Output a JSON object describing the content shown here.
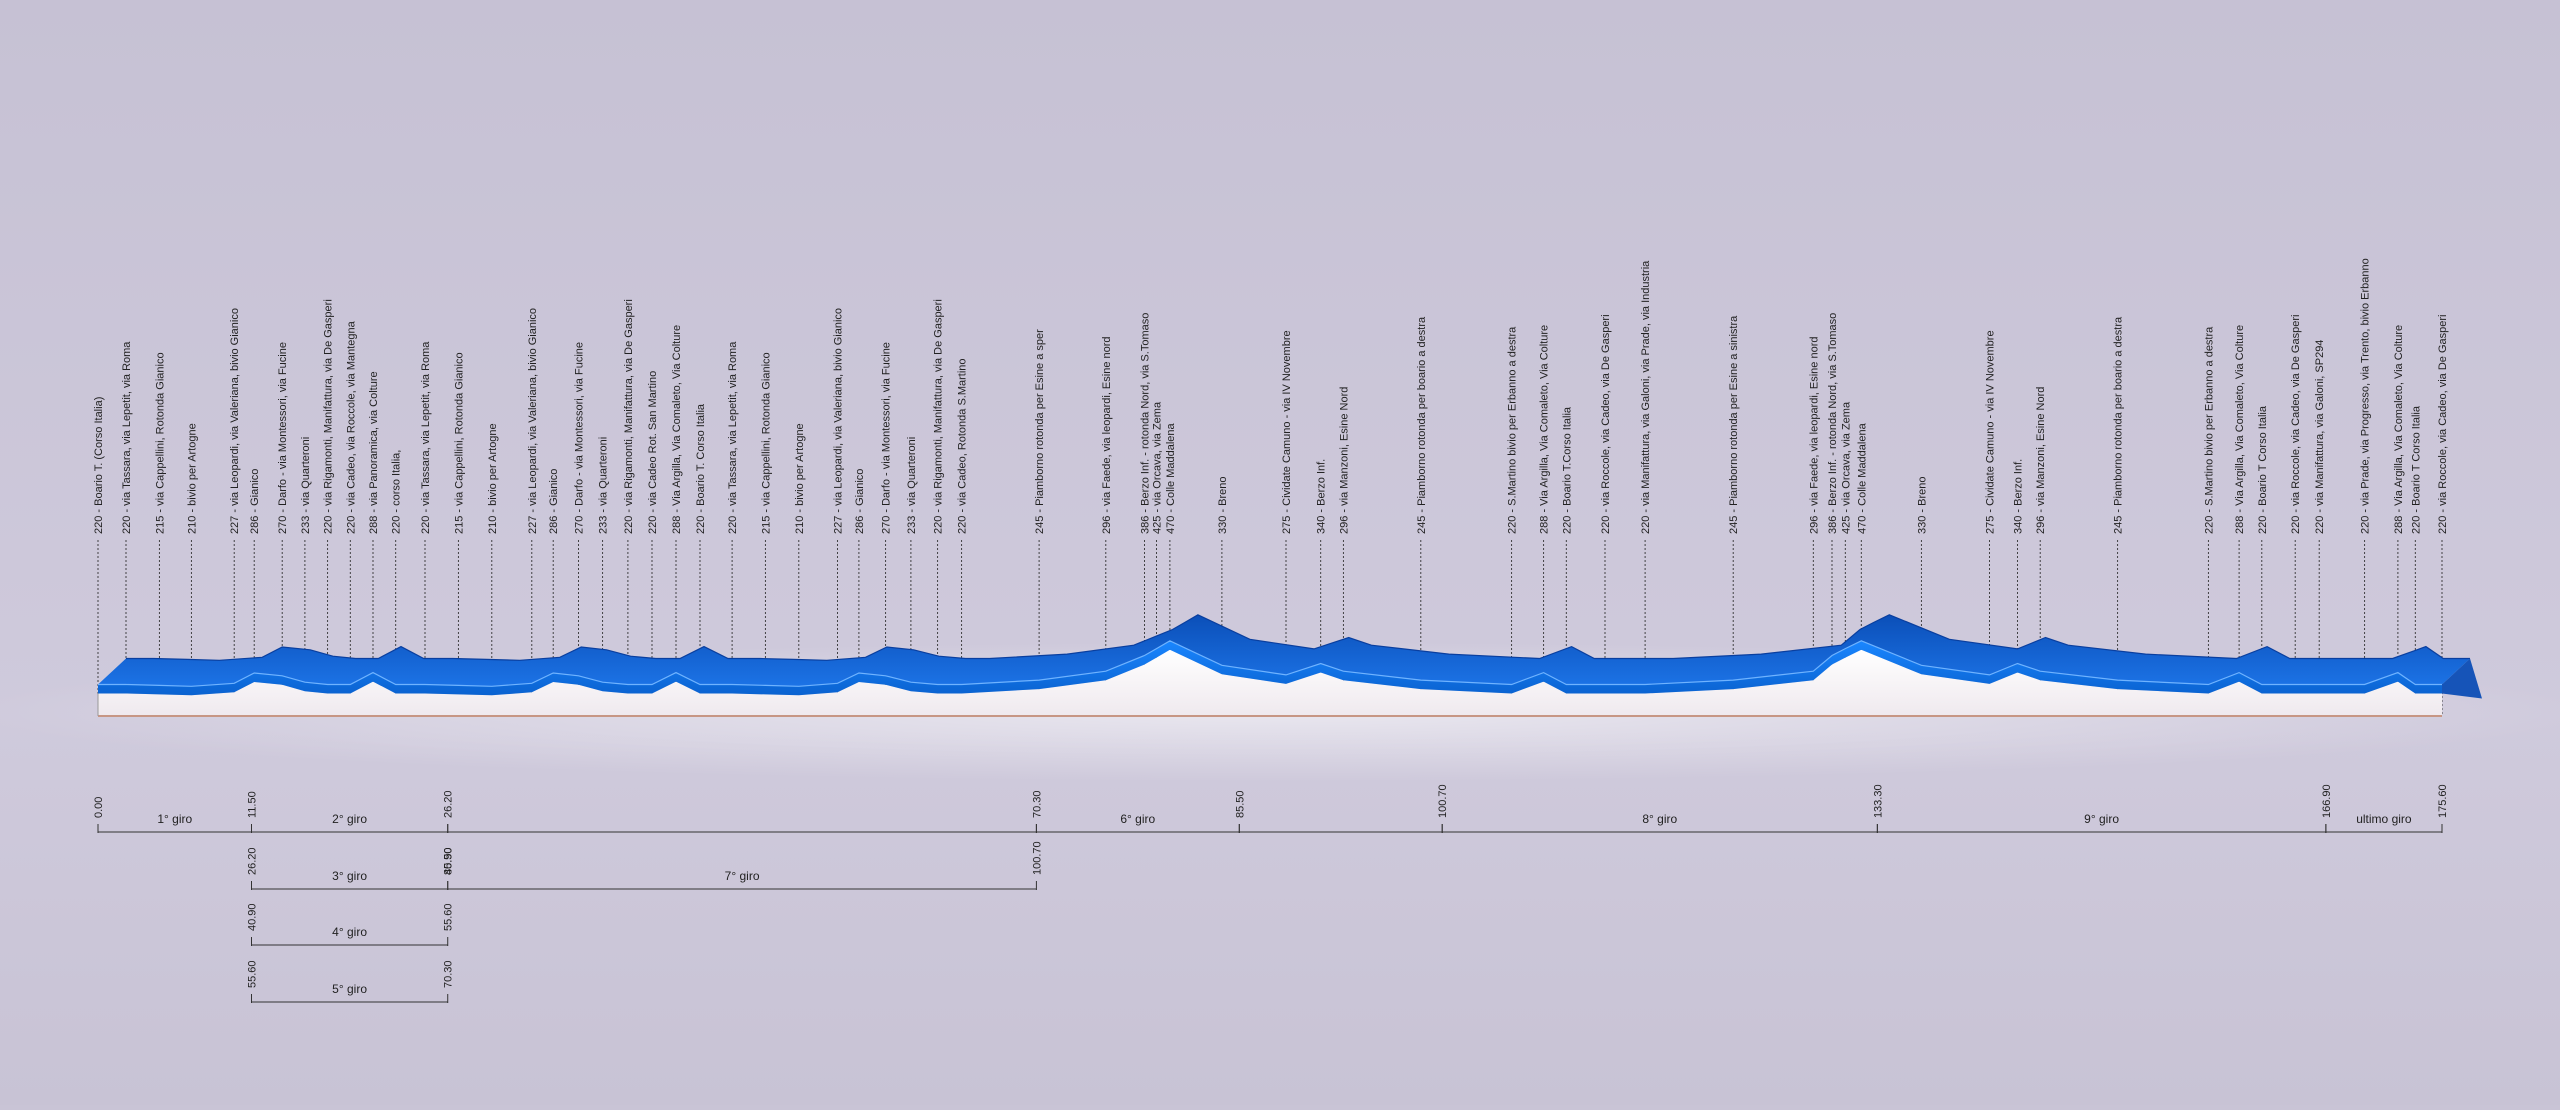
{
  "chart_data": {
    "type": "area",
    "title": "",
    "xlabel": "",
    "ylabel": "",
    "xlim": [
      0,
      175.6
    ],
    "ylim": [
      200,
      480
    ],
    "colors": {
      "band_front": "#0a74e8",
      "band_top": "#1d66d8",
      "band_dark": "#0b3f9a",
      "base": "#f7f4f6",
      "background": "#c9c4d6"
    },
    "waypoints": [
      {
        "km": 0.0,
        "alt": 220,
        "label": "220 - Boario T. (Corso Italia)"
      },
      {
        "km": 2.1,
        "alt": 220,
        "label": "220 - via Tassara, via Lepetit, via Roma"
      },
      {
        "km": 4.6,
        "alt": 215,
        "label": "215 - via Cappellini, Rotonda Gianico"
      },
      {
        "km": 7.0,
        "alt": 210,
        "label": "210 - bivio per Artogne"
      },
      {
        "km": 10.2,
        "alt": 227,
        "label": "227 - via Leopardi, via Valeriana, bivio Gianico"
      },
      {
        "km": 11.7,
        "alt": 286,
        "label": "286 - Gianico"
      },
      {
        "km": 13.8,
        "alt": 270,
        "label": "270 - Darfo - via Montessori, via Fucine"
      },
      {
        "km": 15.5,
        "alt": 233,
        "label": "233 - via Quarteroni"
      },
      {
        "km": 17.2,
        "alt": 220,
        "label": "220 - via Rigamonti, Manifattura, via De Gasperi"
      },
      {
        "km": 18.9,
        "alt": 220,
        "label": "220 - via Cadeo, via Roccole, via Mantegna"
      },
      {
        "km": 20.6,
        "alt": 288,
        "label": "288 - via Panoramica, via Colture"
      },
      {
        "km": 22.3,
        "alt": 220,
        "label": "220 - corso Italia,"
      },
      {
        "km": 24.5,
        "alt": 220,
        "label": "220 - via Tassara, via Lepetit, via Roma"
      },
      {
        "km": 27.0,
        "alt": 215,
        "label": "215 - via Cappellini, Rotonda Gianico"
      },
      {
        "km": 29.5,
        "alt": 210,
        "label": "210 - bivio per Artogne"
      },
      {
        "km": 32.5,
        "alt": 227,
        "label": "227 - via Leopardi, via Valeriana, bivio Gianico"
      },
      {
        "km": 34.1,
        "alt": 286,
        "label": "286 - Gianico"
      },
      {
        "km": 36.0,
        "alt": 270,
        "label": "270 - Darfo - via Montessori, via Fucine"
      },
      {
        "km": 37.8,
        "alt": 233,
        "label": "233 - via Quarteroni"
      },
      {
        "km": 39.7,
        "alt": 220,
        "label": "220 - via Rigamonti, Manifattura, via De Gasperi"
      },
      {
        "km": 41.5,
        "alt": 220,
        "label": "220 - via Cadeo Rot. San Martino"
      },
      {
        "km": 43.3,
        "alt": 288,
        "label": "288 - Via Argilla, Via Comaleto, Via Colture"
      },
      {
        "km": 45.1,
        "alt": 220,
        "label": "220 - Boario T. Corso Italia"
      },
      {
        "km": 47.5,
        "alt": 220,
        "label": "220 - via Tassara, via Lepetit, via Roma"
      },
      {
        "km": 50.0,
        "alt": 215,
        "label": "215 - via Cappellini, Rotonda Gianico"
      },
      {
        "km": 52.5,
        "alt": 210,
        "label": "210 - bivio per Artogne"
      },
      {
        "km": 55.4,
        "alt": 227,
        "label": "227 - via Leopardi, via Valeriana, bivio Gianico"
      },
      {
        "km": 57.0,
        "alt": 286,
        "label": "286 - Gianico"
      },
      {
        "km": 59.0,
        "alt": 270,
        "label": "270 - Darfo - via Montessori, via Fucine"
      },
      {
        "km": 60.9,
        "alt": 233,
        "label": "233 - via Quarteroni"
      },
      {
        "km": 62.9,
        "alt": 220,
        "label": "220 - via Rigamonti, Manifattura, via De Gasperi"
      },
      {
        "km": 64.7,
        "alt": 220,
        "label": "220 - via Cadeo, Rotonda S.Martino"
      },
      {
        "km": 70.5,
        "alt": 245,
        "label": "245 - Piamborno rotonda per Esine a sper"
      },
      {
        "km": 75.5,
        "alt": 296,
        "label": "296 - via Faede, via leopardi, Esine nord"
      },
      {
        "km": 78.4,
        "alt": 386,
        "label": "386 - Berzo Inf. - rotonda Nord, via S.Tomaso"
      },
      {
        "km": 79.3,
        "alt": 425,
        "label": "425 - via Orcava, via Zema"
      },
      {
        "km": 80.3,
        "alt": 470,
        "label": "470 - Colle Maddalena"
      },
      {
        "km": 84.2,
        "alt": 330,
        "label": "330 - Breno"
      },
      {
        "km": 89.0,
        "alt": 275,
        "label": "275 - Cividate Camuno - via IV Novembre"
      },
      {
        "km": 91.6,
        "alt": 340,
        "label": "340 - Berzo Inf."
      },
      {
        "km": 93.3,
        "alt": 296,
        "label": "296 - via Manzoni, Esine Nord"
      },
      {
        "km": 99.1,
        "alt": 245,
        "label": "245 - Piamborno rotonda per boario a destra"
      },
      {
        "km": 105.9,
        "alt": 220,
        "label": "220 - S.Martino bivio per Erbanno a destra"
      },
      {
        "km": 108.3,
        "alt": 288,
        "label": "288 - Via Argilla, Via Comaleto, Via Colture"
      },
      {
        "km": 110.0,
        "alt": 220,
        "label": "220 - Boario T.Corso Italia"
      },
      {
        "km": 112.9,
        "alt": 220,
        "label": "220 - via Roccole, via Cadeo, via De Gasperi"
      },
      {
        "km": 115.9,
        "alt": 220,
        "label": "220 - via Manifattura, via Galoni, via Prade, via Industria"
      },
      {
        "km": 122.5,
        "alt": 245,
        "label": "245 - Piamborno rotonda per Esine a sinistra"
      },
      {
        "km": 128.5,
        "alt": 296,
        "label": "296 - via Faede, via leopardi, Esine nord"
      },
      {
        "km": 129.9,
        "alt": 386,
        "label": "386 - Berzo Inf. - rotonda Nord, via S.Tomaso"
      },
      {
        "km": 130.9,
        "alt": 425,
        "label": "425 - via Orcava, via Zema"
      },
      {
        "km": 132.1,
        "alt": 470,
        "label": "470 - Colle Maddalena"
      },
      {
        "km": 136.6,
        "alt": 330,
        "label": "330 - Breno"
      },
      {
        "km": 141.7,
        "alt": 275,
        "label": "275 - Cividate Camuno - via IV Novembre"
      },
      {
        "km": 143.8,
        "alt": 340,
        "label": "340 - Berzo Inf."
      },
      {
        "km": 145.5,
        "alt": 296,
        "label": "296 - via Manzoni, Esine Nord"
      },
      {
        "km": 151.3,
        "alt": 245,
        "label": "245 - Piamborno rotonda per boario a destra"
      },
      {
        "km": 158.1,
        "alt": 220,
        "label": "220 - S.Martino bivio per Erbanno a destra"
      },
      {
        "km": 160.4,
        "alt": 288,
        "label": "288 - Via Argilla, Via Comaleto, Via Colture"
      },
      {
        "km": 162.1,
        "alt": 220,
        "label": "220 - Boario T Corso Italia"
      },
      {
        "km": 164.6,
        "alt": 220,
        "label": "220 - via Roccole, via Cadeo, via De Gasperi"
      },
      {
        "km": 166.4,
        "alt": 220,
        "label": "220 - via Manifattura, via Galoni, SP294"
      },
      {
        "km": 169.8,
        "alt": 220,
        "label": "220 - via Prade, via Progresso, via Trento, bivio Erbanno"
      },
      {
        "km": 172.3,
        "alt": 288,
        "label": "288 - Via Argilla, Via Comaleto, Via Colture"
      },
      {
        "km": 173.6,
        "alt": 220,
        "label": "220 - Boario T Corso Italia"
      },
      {
        "km": 175.6,
        "alt": 220,
        "label": "220 - via Roccole, via Cadeo, via De Gasperi"
      }
    ],
    "laps": [
      {
        "row": 0,
        "start": 0.0,
        "end": 11.5,
        "start_label": "0.00",
        "end_label": "11.50",
        "name": "1° giro"
      },
      {
        "row": 0,
        "start": 11.5,
        "end": 26.2,
        "start_label": "",
        "end_label": "26.20",
        "name": "2° giro"
      },
      {
        "row": 0,
        "start": 26.2,
        "end": 70.3,
        "start_label": "",
        "end_label": "70.30",
        "name": ""
      },
      {
        "row": 0,
        "start": 70.3,
        "end": 85.5,
        "start_label": "",
        "end_label": "85.50",
        "name": "6° giro"
      },
      {
        "row": 0,
        "start": 85.5,
        "end": 100.7,
        "start_label": "",
        "end_label": "100.70",
        "name": ""
      },
      {
        "row": 0,
        "start": 100.7,
        "end": 133.3,
        "start_label": "",
        "end_label": "133.30",
        "name": "8° giro"
      },
      {
        "row": 0,
        "start": 133.3,
        "end": 166.9,
        "start_label": "",
        "end_label": "166.90",
        "name": "9° giro"
      },
      {
        "row": 0,
        "start": 166.9,
        "end": 175.6,
        "start_label": "",
        "end_label": "175.60",
        "name": "ultimo giro"
      },
      {
        "row": 1,
        "start": 11.5,
        "end": 26.2,
        "start_label": "26.20",
        "end_label": "40.90",
        "name": "3° giro"
      },
      {
        "row": 1,
        "start": 26.2,
        "end": 70.3,
        "start_label": "85.50",
        "end_label": "100.70",
        "name": "7° giro"
      },
      {
        "row": 2,
        "start": 11.5,
        "end": 26.2,
        "start_label": "40.90",
        "end_label": "55.60",
        "name": "4° giro"
      },
      {
        "row": 3,
        "start": 11.5,
        "end": 26.2,
        "start_label": "55.60",
        "end_label": "70.30",
        "name": "5° giro"
      }
    ]
  }
}
